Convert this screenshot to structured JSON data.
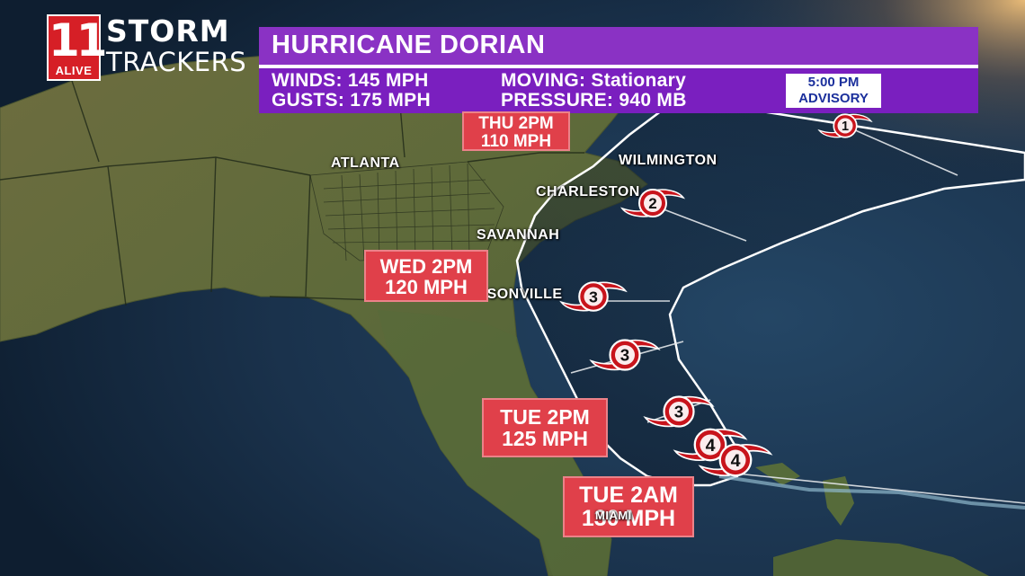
{
  "brand": {
    "logo_number": "11",
    "logo_sub": "ALIVE",
    "name_line1": "STORM",
    "name_line2": "TRACKERS"
  },
  "storm": {
    "title": "HURRICANE DORIAN",
    "winds": "WINDS: 145 MPH",
    "gusts": "GUSTS: 175 MPH",
    "moving": "MOVING: Stationary",
    "pressure": "PRESSURE: 940 MB",
    "advisory_time": "5:00 PM",
    "advisory_label": "ADVISORY"
  },
  "cities": {
    "atlanta": "ATLANTA",
    "wilmington": "WILMINGTON",
    "charleston": "CHARLESTON",
    "savannah": "SAVANNAH",
    "jacksonville": "JACKSONVILLE",
    "miami": "MIAMI"
  },
  "forecast_boxes": [
    {
      "time": "THU 2PM",
      "speed": "110 MPH"
    },
    {
      "time": "WED 2PM",
      "speed": "120 MPH"
    },
    {
      "time": "TUE 2PM",
      "speed": "125 MPH"
    },
    {
      "time": "TUE 2AM",
      "speed": "130 MPH"
    }
  ],
  "track_points": [
    {
      "category": "1"
    },
    {
      "category": "2"
    },
    {
      "category": "3"
    },
    {
      "category": "3"
    },
    {
      "category": "3"
    },
    {
      "category": "4"
    },
    {
      "category": "4"
    }
  ],
  "colors": {
    "land": "#5e6a3a",
    "ocean": "#1b3550",
    "title_bar": "#8a32c4",
    "info_bar": "#7a1fbf",
    "forecast_box": "#e0404a",
    "hurricane_icon": "#c8141c",
    "logo_red": "#d61f26"
  }
}
